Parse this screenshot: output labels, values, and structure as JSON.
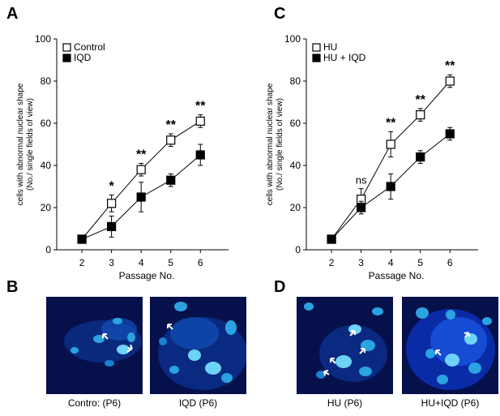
{
  "panels": {
    "A": "A",
    "B": "B",
    "C": "C",
    "D": "D"
  },
  "chart_data": [
    {
      "type": "line",
      "panel": "A",
      "ylabel_line1": "cells with abnormal nuclear shape",
      "ylabel_line2": "(No./ single fields of view)",
      "xlabel": "Passage No.",
      "x": [
        2,
        3,
        4,
        5,
        6
      ],
      "ylim": [
        0,
        100
      ],
      "yticks": [
        0,
        20,
        40,
        60,
        80,
        100
      ],
      "series": [
        {
          "name": "Control",
          "marker": "open-square",
          "values": [
            5,
            22,
            38,
            52,
            61
          ],
          "errors": [
            1,
            4,
            3,
            3,
            3
          ]
        },
        {
          "name": "IQD",
          "marker": "filled-square",
          "values": [
            5,
            11,
            25,
            33,
            45
          ],
          "errors": [
            1,
            5,
            7,
            3,
            5
          ]
        }
      ],
      "annotations": [
        "",
        "*",
        "**",
        "**",
        "**"
      ],
      "legend_position": "top-left"
    },
    {
      "type": "line",
      "panel": "C",
      "ylabel_line1": "cells with abnormal nuclear shape",
      "ylabel_line2": "(No./ single fields of view)",
      "xlabel": "Passage No.",
      "x": [
        2,
        3,
        4,
        5,
        6
      ],
      "ylim": [
        0,
        100
      ],
      "yticks": [
        0,
        20,
        40,
        60,
        80,
        100
      ],
      "series": [
        {
          "name": "HU",
          "marker": "open-square",
          "values": [
            5,
            24,
            50,
            64,
            80
          ],
          "errors": [
            1,
            5,
            6,
            3,
            3
          ]
        },
        {
          "name": "HU + IQD",
          "marker": "filled-square",
          "values": [
            5,
            20,
            30,
            44,
            55
          ],
          "errors": [
            1,
            3,
            6,
            3,
            3
          ]
        }
      ],
      "annotations": [
        "",
        "ns",
        "**",
        "**",
        "**"
      ],
      "legend_position": "top-left"
    }
  ],
  "images": [
    {
      "caption": "Contro: (P6)"
    },
    {
      "caption": "IQD (P6)"
    },
    {
      "caption": "HU (P6)"
    },
    {
      "caption": "HU+IQD (P6)"
    }
  ],
  "colors": {
    "micro_bg": "#06104a",
    "nucleus": "#2aa3e0",
    "nucleus_bright": "#6fd3f7",
    "arrow": "#ffffff"
  }
}
